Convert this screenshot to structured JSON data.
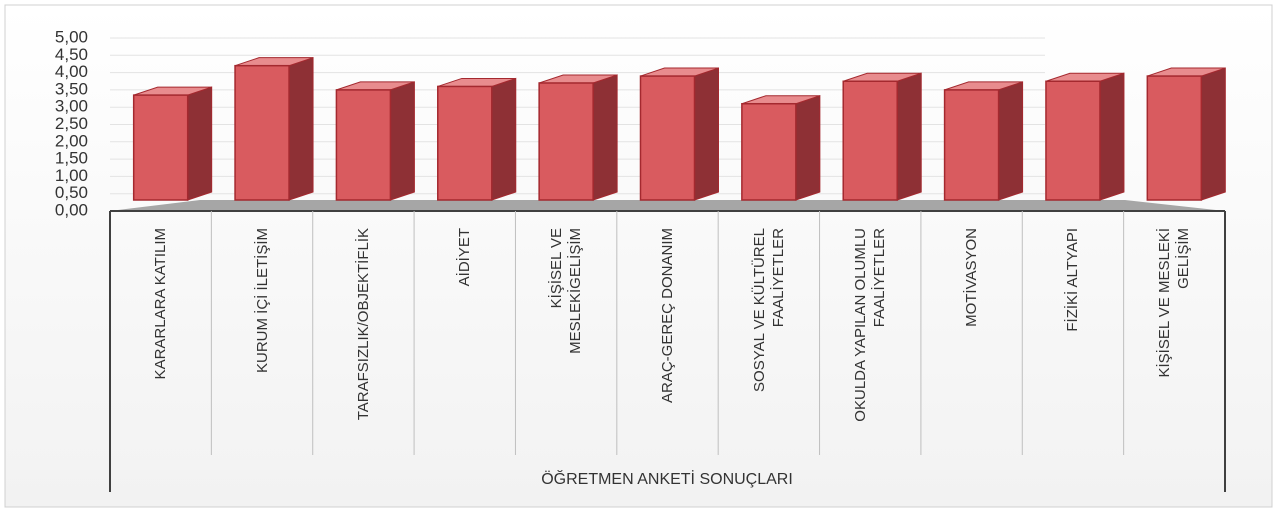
{
  "chart_data": {
    "type": "bar3d",
    "x_label": "ÖĞRETMEN ANKETİ SONUÇLARI",
    "categories": [
      "KARARLARA KATILIM",
      "KURUM İÇİ İLETİŞİM",
      "TARAFSIZLIK/OBJEKTİFLİK",
      "AİDİYET",
      "KİŞİSEL VE MESLEKİGELİŞİM",
      "ARAÇ-GEREÇ DONANIM",
      "SOSYAL VE KÜLTÜREL FAALİYETLER",
      "OKULDA YAPILAN OLUMLU FAALİYETLER",
      "MOTİVASYON",
      "FİZİKİ ALTYAPI",
      "KİŞİSEL VE MESLEKİ GELİŞİM"
    ],
    "values": [
      3.35,
      4.2,
      3.5,
      3.6,
      3.7,
      3.9,
      3.1,
      3.75,
      3.5,
      3.75,
      3.9
    ],
    "color": "#d95b5f",
    "ylim": [
      0,
      5
    ],
    "yticks": [
      {
        "value": 0,
        "label": "0,00"
      },
      {
        "value": 0.5,
        "label": "0,50"
      },
      {
        "value": 1,
        "label": "1,00"
      },
      {
        "value": 1.5,
        "label": "1,50"
      },
      {
        "value": 2,
        "label": "2,00"
      },
      {
        "value": 2.5,
        "label": "2,50"
      },
      {
        "value": 3,
        "label": "3,00"
      },
      {
        "value": 3.5,
        "label": "3,50"
      },
      {
        "value": 4,
        "label": "4,00"
      },
      {
        "value": 4.5,
        "label": "4,50"
      },
      {
        "value": 5,
        "label": "5,00"
      }
    ],
    "grid": true
  }
}
